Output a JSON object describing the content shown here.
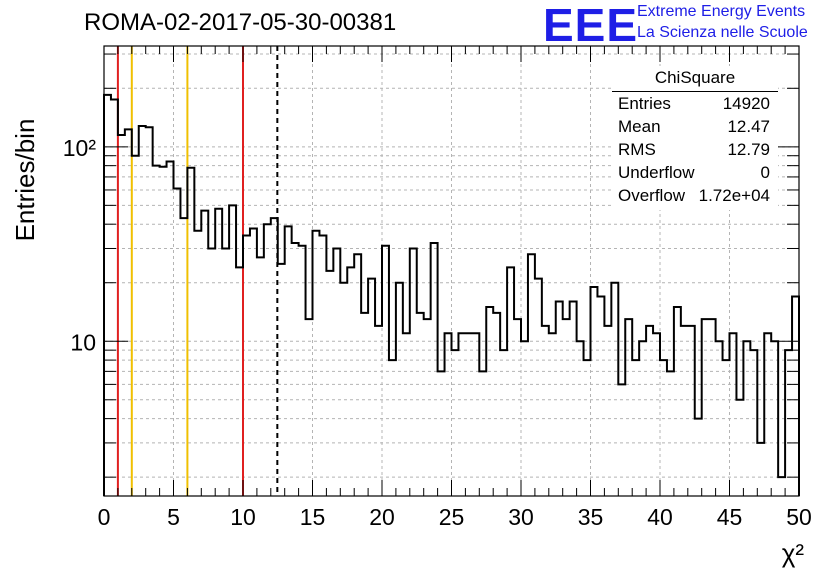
{
  "title": "ROMA-02-2017-05-30-00381",
  "logo": {
    "letters": "EEE",
    "line1": "Extreme Energy Events",
    "line2": "La Scienza nelle Scuole",
    "color": "#1e1ee6"
  },
  "stats_box": {
    "title": "ChiSquare",
    "rows": [
      {
        "key": "Entries",
        "value": "14920"
      },
      {
        "key": "Mean",
        "value": "12.47"
      },
      {
        "key": "RMS",
        "value": "12.79"
      },
      {
        "key": "Underflow",
        "value": "0"
      },
      {
        "key": "Overflow",
        "value": "1.72e+04"
      }
    ]
  },
  "chart_data": {
    "type": "histogram",
    "title": "ROMA-02-2017-05-30-00381",
    "xlabel": "χ²",
    "ylabel": "Entries/bin",
    "xlim": [
      0,
      50
    ],
    "ylim": [
      1.6,
      330
    ],
    "yscale": "log",
    "grid": true,
    "x_ticks": [
      "0",
      "5",
      "10",
      "15",
      "20",
      "25",
      "30",
      "35",
      "40",
      "45",
      "50"
    ],
    "y_ticks": [
      {
        "value": 10,
        "label": "10"
      },
      {
        "value": 100,
        "label": "10²"
      }
    ],
    "bin_width": 0.5,
    "values": [
      185,
      175,
      115,
      123,
      90,
      128,
      126,
      80,
      79,
      84,
      61,
      43,
      78,
      37,
      47,
      30,
      48,
      30,
      50,
      24,
      35,
      38,
      27,
      40,
      43,
      25,
      39,
      32,
      31,
      13,
      37,
      35,
      23,
      30,
      20,
      24,
      28,
      14,
      21,
      12,
      31,
      8,
      20,
      11,
      30,
      14,
      13,
      32,
      7,
      11,
      9,
      11,
      11,
      11,
      7,
      15,
      14,
      9,
      24,
      13,
      10,
      28,
      21,
      12,
      11,
      16,
      13,
      16,
      10,
      8,
      19,
      17,
      12,
      20,
      6,
      13,
      8,
      10,
      12,
      11,
      8,
      7,
      15,
      12,
      12,
      4,
      13,
      13,
      10,
      8,
      11,
      5,
      10,
      9,
      3,
      11,
      10,
      2,
      9,
      17
    ],
    "vertical_lines": [
      {
        "x": 1,
        "color": "#e02020",
        "style": "solid"
      },
      {
        "x": 2,
        "color": "#f0c000",
        "style": "solid"
      },
      {
        "x": 6,
        "color": "#f0c000",
        "style": "solid"
      },
      {
        "x": 10,
        "color": "#e02020",
        "style": "solid"
      },
      {
        "x": 12.47,
        "color": "#000000",
        "style": "dashed"
      }
    ]
  }
}
